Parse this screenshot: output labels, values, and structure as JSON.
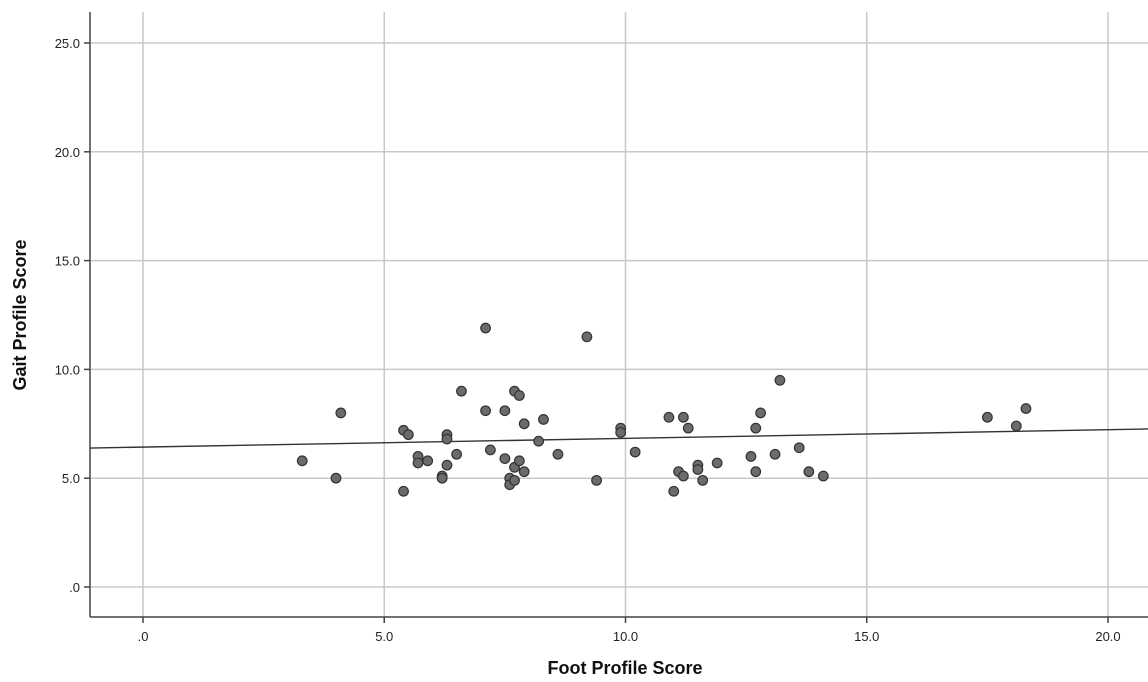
{
  "chart_data": {
    "type": "scatter",
    "xlabel": "Foot Profile Score",
    "ylabel": "Gait Profile Score",
    "xlim": [
      -1.1,
      21.0
    ],
    "ylim": [
      -1.4,
      26.5
    ],
    "x_ticks": [
      0,
      5,
      10,
      15,
      20
    ],
    "y_ticks": [
      0,
      5,
      10,
      15,
      20,
      25
    ],
    "x_tick_labels": [
      ".0",
      "5.0",
      "10.0",
      "15.0",
      "20.0"
    ],
    "y_tick_labels": [
      ".0",
      "5.0",
      "10.0",
      "15.0",
      "20.0",
      "25.0"
    ],
    "grid": true,
    "points": [
      {
        "x": 3.3,
        "y": 5.8
      },
      {
        "x": 4.0,
        "y": 5.0
      },
      {
        "x": 4.1,
        "y": 8.0
      },
      {
        "x": 5.4,
        "y": 7.2
      },
      {
        "x": 5.5,
        "y": 7.0
      },
      {
        "x": 5.4,
        "y": 4.4
      },
      {
        "x": 5.7,
        "y": 6.0
      },
      {
        "x": 5.7,
        "y": 5.7
      },
      {
        "x": 5.9,
        "y": 5.8
      },
      {
        "x": 6.2,
        "y": 5.1
      },
      {
        "x": 6.2,
        "y": 5.0
      },
      {
        "x": 6.3,
        "y": 7.0
      },
      {
        "x": 6.3,
        "y": 6.8
      },
      {
        "x": 6.3,
        "y": 5.6
      },
      {
        "x": 6.5,
        "y": 6.1
      },
      {
        "x": 6.6,
        "y": 9.0
      },
      {
        "x": 7.1,
        "y": 11.9
      },
      {
        "x": 7.1,
        "y": 8.1
      },
      {
        "x": 7.2,
        "y": 6.3
      },
      {
        "x": 7.5,
        "y": 8.1
      },
      {
        "x": 7.5,
        "y": 5.9
      },
      {
        "x": 7.6,
        "y": 5.0
      },
      {
        "x": 7.6,
        "y": 4.7
      },
      {
        "x": 7.7,
        "y": 9.0
      },
      {
        "x": 7.8,
        "y": 8.8
      },
      {
        "x": 7.7,
        "y": 5.5
      },
      {
        "x": 7.7,
        "y": 4.9
      },
      {
        "x": 7.8,
        "y": 5.8
      },
      {
        "x": 7.9,
        "y": 7.5
      },
      {
        "x": 7.9,
        "y": 5.3
      },
      {
        "x": 8.2,
        "y": 6.7
      },
      {
        "x": 8.3,
        "y": 7.7
      },
      {
        "x": 8.6,
        "y": 6.1
      },
      {
        "x": 9.2,
        "y": 11.5
      },
      {
        "x": 9.4,
        "y": 4.9
      },
      {
        "x": 9.9,
        "y": 7.3
      },
      {
        "x": 9.9,
        "y": 7.1
      },
      {
        "x": 10.2,
        "y": 6.2
      },
      {
        "x": 10.9,
        "y": 7.8
      },
      {
        "x": 11.0,
        "y": 4.4
      },
      {
        "x": 11.1,
        "y": 5.3
      },
      {
        "x": 11.2,
        "y": 7.8
      },
      {
        "x": 11.2,
        "y": 5.1
      },
      {
        "x": 11.3,
        "y": 7.3
      },
      {
        "x": 11.5,
        "y": 5.6
      },
      {
        "x": 11.5,
        "y": 5.4
      },
      {
        "x": 11.6,
        "y": 4.9
      },
      {
        "x": 11.9,
        "y": 5.7
      },
      {
        "x": 12.6,
        "y": 6.0
      },
      {
        "x": 12.7,
        "y": 7.3
      },
      {
        "x": 12.7,
        "y": 5.3
      },
      {
        "x": 12.8,
        "y": 8.0
      },
      {
        "x": 13.1,
        "y": 6.1
      },
      {
        "x": 13.2,
        "y": 9.5
      },
      {
        "x": 13.6,
        "y": 6.4
      },
      {
        "x": 13.8,
        "y": 5.3
      },
      {
        "x": 14.1,
        "y": 5.1
      },
      {
        "x": 17.5,
        "y": 7.8
      },
      {
        "x": 18.1,
        "y": 7.4
      },
      {
        "x": 18.3,
        "y": 8.2
      }
    ],
    "fit_line": {
      "intercept": 6.43,
      "slope": 0.04
    }
  }
}
